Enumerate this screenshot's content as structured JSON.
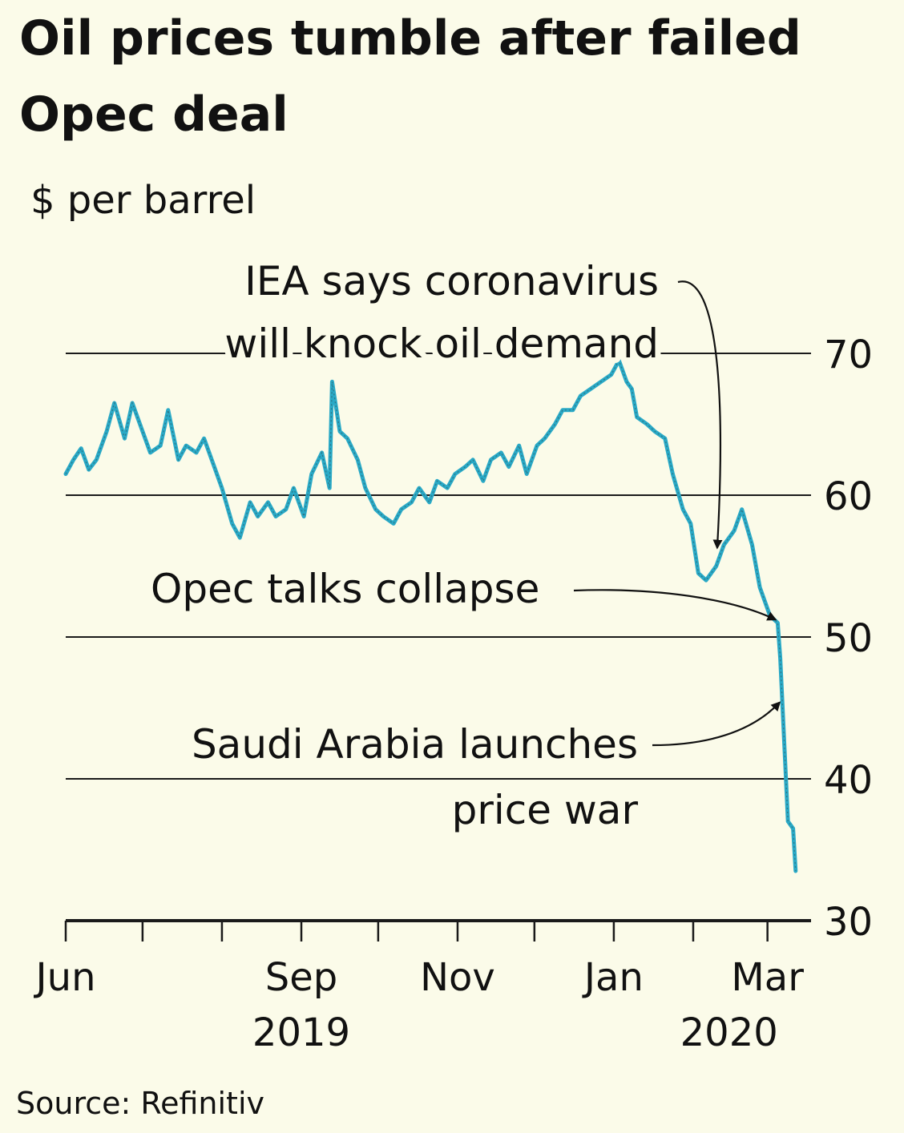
{
  "chart_data": {
    "type": "line",
    "title": "Oil prices tumble after failed Opec deal",
    "subtitle": "$ per barrel",
    "source": "Source: Refinitiv",
    "ylim": [
      30,
      70
    ],
    "yticks": [
      "70",
      "60",
      "50",
      "40",
      "30"
    ],
    "ytick_values": [
      70,
      60,
      50,
      40,
      30
    ],
    "y_axis_side": "right",
    "grid": true,
    "x_month_ticks": [
      "Jun",
      "Sep",
      "Nov",
      "Jan",
      "Mar"
    ],
    "x_year_labels": [
      "2019",
      "2020"
    ],
    "x_month_tick_dates": [
      "2019-06-01",
      "2019-09-01",
      "2019-11-01",
      "2020-01-01",
      "2020-03-01"
    ],
    "x_year_label_dates": [
      "2019-09-01",
      "2020-02-15"
    ],
    "xlim": [
      "2019-06-01",
      "2020-03-13"
    ],
    "line_color": "#29a9c6",
    "series": [
      {
        "name": "",
        "x": [
          "2019-06-01",
          "2019-06-04",
          "2019-06-07",
          "2019-06-10",
          "2019-06-13",
          "2019-06-17",
          "2019-06-20",
          "2019-06-24",
          "2019-06-27",
          "2019-07-01",
          "2019-07-04",
          "2019-07-08",
          "2019-07-11",
          "2019-07-15",
          "2019-07-18",
          "2019-07-22",
          "2019-07-25",
          "2019-07-29",
          "2019-08-01",
          "2019-08-05",
          "2019-08-08",
          "2019-08-12",
          "2019-08-15",
          "2019-08-19",
          "2019-08-22",
          "2019-08-26",
          "2019-08-29",
          "2019-09-02",
          "2019-09-05",
          "2019-09-09",
          "2019-09-12",
          "2019-09-13",
          "2019-09-16",
          "2019-09-19",
          "2019-09-23",
          "2019-09-26",
          "2019-09-30",
          "2019-10-03",
          "2019-10-07",
          "2019-10-10",
          "2019-10-14",
          "2019-10-17",
          "2019-10-21",
          "2019-10-24",
          "2019-10-28",
          "2019-10-31",
          "2019-11-04",
          "2019-11-07",
          "2019-11-11",
          "2019-11-14",
          "2019-11-18",
          "2019-11-21",
          "2019-11-25",
          "2019-11-28",
          "2019-12-02",
          "2019-12-05",
          "2019-12-09",
          "2019-12-12",
          "2019-12-16",
          "2019-12-19",
          "2019-12-23",
          "2019-12-27",
          "2019-12-31",
          "2020-01-03",
          "2020-01-06",
          "2020-01-08",
          "2020-01-10",
          "2020-01-14",
          "2020-01-17",
          "2020-01-21",
          "2020-01-24",
          "2020-01-28",
          "2020-01-31",
          "2020-02-03",
          "2020-02-06",
          "2020-02-10",
          "2020-02-13",
          "2020-02-17",
          "2020-02-20",
          "2020-02-24",
          "2020-02-27",
          "2020-03-02",
          "2020-03-05",
          "2020-03-06",
          "2020-03-09",
          "2020-03-11",
          "2020-03-12"
        ],
        "y": [
          61.5,
          62.5,
          63.3,
          61.8,
          62.5,
          64.5,
          66.5,
          64.0,
          66.5,
          64.5,
          63.0,
          63.5,
          66.0,
          62.5,
          63.5,
          63.0,
          64.0,
          62.0,
          60.5,
          58.0,
          57.0,
          59.5,
          58.5,
          59.5,
          58.5,
          59.0,
          60.5,
          58.5,
          61.5,
          63.0,
          60.5,
          68.0,
          64.5,
          64.0,
          62.5,
          60.5,
          59.0,
          58.5,
          58.0,
          59.0,
          59.5,
          60.5,
          59.5,
          61.0,
          60.5,
          61.5,
          62.0,
          62.5,
          61.0,
          62.5,
          63.0,
          62.0,
          63.5,
          61.5,
          63.5,
          64.0,
          65.0,
          66.0,
          66.0,
          67.0,
          67.5,
          68.0,
          68.5,
          69.5,
          68.0,
          67.5,
          65.5,
          65.0,
          64.5,
          64.0,
          61.5,
          59.0,
          58.0,
          54.5,
          54.0,
          55.0,
          56.5,
          57.5,
          59.0,
          56.5,
          53.5,
          51.5,
          51.0,
          48.5,
          37.0,
          36.5,
          33.5
        ]
      }
    ],
    "annotations": [
      {
        "lines": [
          "IEA says coronavirus",
          "will knock oil demand"
        ],
        "point": {
          "x": "2020-02-11",
          "y": 55.5
        }
      },
      {
        "lines": [
          "Opec talks collapse"
        ],
        "point": {
          "x": "2020-03-06",
          "y": 51.0
        }
      },
      {
        "lines": [
          "Saudi Arabia launches",
          "price war"
        ],
        "point": {
          "x": "2020-03-07",
          "y": 45.5
        }
      }
    ]
  }
}
